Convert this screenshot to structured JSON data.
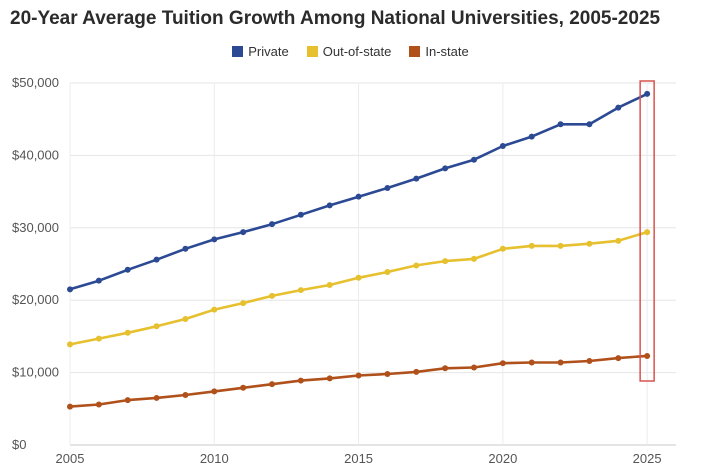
{
  "title": "20-Year Average Tuition Growth Among National Universities, 2005-2025",
  "legend": [
    {
      "name": "Private",
      "color": "#2c4a94"
    },
    {
      "name": "Out-of-state",
      "color": "#e6c02e"
    },
    {
      "name": "In-state",
      "color": "#b0501a"
    }
  ],
  "highlight_color": "#d9534f",
  "chart_data": {
    "type": "line",
    "title": "20-Year Average Tuition Growth Among National Universities, 2005-2025",
    "xlabel": "",
    "ylabel": "",
    "x": [
      2005,
      2006,
      2007,
      2008,
      2009,
      2010,
      2011,
      2012,
      2013,
      2014,
      2015,
      2016,
      2017,
      2018,
      2019,
      2020,
      2021,
      2022,
      2023,
      2024,
      2025
    ],
    "xlim": [
      2005,
      2026
    ],
    "ylim": [
      0,
      50000
    ],
    "x_ticks": [
      2005,
      2010,
      2015,
      2020,
      2025
    ],
    "x_tick_labels": [
      "2005",
      "2010",
      "2015",
      "2020",
      "2025"
    ],
    "y_ticks": [
      0,
      10000,
      20000,
      30000,
      40000,
      50000
    ],
    "y_tick_labels": [
      "$0",
      "$10,000",
      "$20,000",
      "$30,000",
      "$40,000",
      "$50,000"
    ],
    "grid": true,
    "legend_position": "top-center",
    "highlight_x": 2025,
    "series": [
      {
        "name": "Private",
        "color": "#2c4a94",
        "values": [
          21500,
          22700,
          24200,
          25600,
          27100,
          28400,
          29400,
          30500,
          31800,
          33100,
          34300,
          35500,
          36800,
          38200,
          39400,
          41300,
          42600,
          44300,
          44300,
          46600,
          48500
        ]
      },
      {
        "name": "Out-of-state",
        "color": "#e6c02e",
        "values": [
          13900,
          14700,
          15500,
          16400,
          17400,
          18700,
          19600,
          20600,
          21400,
          22100,
          23100,
          23900,
          24800,
          25400,
          25700,
          27100,
          27500,
          27500,
          27800,
          28200,
          29400
        ]
      },
      {
        "name": "In-state",
        "color": "#b0501a",
        "values": [
          5300,
          5600,
          6200,
          6500,
          6900,
          7400,
          7900,
          8400,
          8900,
          9200,
          9600,
          9800,
          10100,
          10600,
          10700,
          11300,
          11400,
          11400,
          11600,
          12000,
          12300
        ]
      }
    ]
  }
}
